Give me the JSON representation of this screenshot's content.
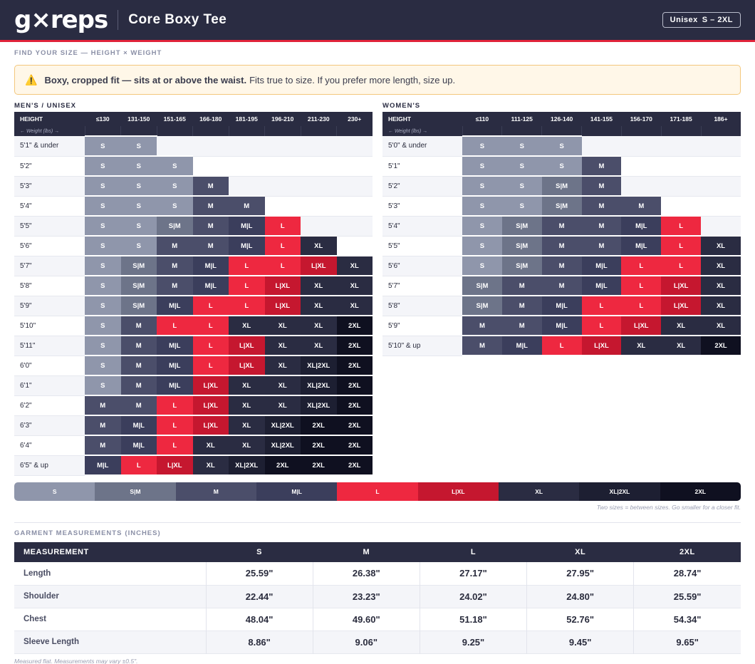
{
  "header": {
    "logo": "g×reps",
    "product_title": "Core Boxy Tee",
    "fit_label": "Unisex",
    "size_range": "S – 2XL"
  },
  "subtitle": "FIND YOUR SIZE  —  HEIGHT × WEIGHT",
  "notice": {
    "icon": "warning-icon",
    "bold_text": "Boxy, cropped fit — sits at or above the waist.",
    "text": "Fits true to size. If you prefer more length, size up."
  },
  "colors": {
    "S": "#8f96ab",
    "S|M": "#6d7489",
    "M": "#4b4e6a",
    "M|L": "#3b3e5c",
    "L": "#ee2840",
    "L|XL": "#c5172f",
    "XL": "#2a2c42",
    "XL|2XL": "#1d1f32",
    "2XL": "#0f1020"
  },
  "mens": {
    "title": "MEN'S / UNISEX",
    "height_header": "HEIGHT",
    "weight_sublabel": "← Weight (lbs) →",
    "weight_columns": [
      "≤130",
      "131-150",
      "151-165",
      "166-180",
      "181-195",
      "196-210",
      "211-230",
      "230+"
    ],
    "rows": [
      {
        "height": "5'1\" & under",
        "sizes": [
          "S",
          "S",
          "",
          "",
          "",
          "",
          "",
          ""
        ]
      },
      {
        "height": "5'2\"",
        "sizes": [
          "S",
          "S",
          "S",
          "",
          "",
          "",
          "",
          ""
        ]
      },
      {
        "height": "5'3\"",
        "sizes": [
          "S",
          "S",
          "S",
          "M",
          "",
          "",
          "",
          ""
        ]
      },
      {
        "height": "5'4\"",
        "sizes": [
          "S",
          "S",
          "S",
          "M",
          "M",
          "",
          "",
          ""
        ]
      },
      {
        "height": "5'5\"",
        "sizes": [
          "S",
          "S",
          "S|M",
          "M",
          "M|L",
          "L",
          "",
          ""
        ]
      },
      {
        "height": "5'6\"",
        "sizes": [
          "S",
          "S",
          "M",
          "M",
          "M|L",
          "L",
          "XL",
          ""
        ]
      },
      {
        "height": "5'7\"",
        "sizes": [
          "S",
          "S|M",
          "M",
          "M|L",
          "L",
          "L",
          "L|XL",
          "XL"
        ]
      },
      {
        "height": "5'8\"",
        "sizes": [
          "S",
          "S|M",
          "M",
          "M|L",
          "L",
          "L|XL",
          "XL",
          "XL"
        ]
      },
      {
        "height": "5'9\"",
        "sizes": [
          "S",
          "S|M",
          "M|L",
          "L",
          "L",
          "L|XL",
          "XL",
          "XL"
        ]
      },
      {
        "height": "5'10\"",
        "sizes": [
          "S",
          "M",
          "L",
          "L",
          "XL",
          "XL",
          "XL",
          "2XL"
        ]
      },
      {
        "height": "5'11\"",
        "sizes": [
          "S",
          "M",
          "M|L",
          "L",
          "L|XL",
          "XL",
          "XL",
          "2XL"
        ]
      },
      {
        "height": "6'0\"",
        "sizes": [
          "S",
          "M",
          "M|L",
          "L",
          "L|XL",
          "XL",
          "XL|2XL",
          "2XL"
        ]
      },
      {
        "height": "6'1\"",
        "sizes": [
          "S",
          "M",
          "M|L",
          "L|XL",
          "XL",
          "XL",
          "XL|2XL",
          "2XL"
        ]
      },
      {
        "height": "6'2\"",
        "sizes": [
          "M",
          "M",
          "L",
          "L|XL",
          "XL",
          "XL",
          "XL|2XL",
          "2XL"
        ]
      },
      {
        "height": "6'3\"",
        "sizes": [
          "M",
          "M|L",
          "L",
          "L|XL",
          "XL",
          "XL|2XL",
          "2XL",
          "2XL"
        ]
      },
      {
        "height": "6'4\"",
        "sizes": [
          "M",
          "M|L",
          "L",
          "XL",
          "XL",
          "XL|2XL",
          "2XL",
          "2XL"
        ]
      },
      {
        "height": "6'5\" & up",
        "sizes": [
          "M|L",
          "L",
          "L|XL",
          "XL",
          "XL|2XL",
          "2XL",
          "2XL",
          "2XL"
        ]
      }
    ]
  },
  "womens": {
    "title": "WOMEN'S",
    "height_header": "HEIGHT",
    "weight_sublabel": "← Weight (lbs) →",
    "weight_columns": [
      "≤110",
      "111-125",
      "126-140",
      "141-155",
      "156-170",
      "171-185",
      "186+"
    ],
    "rows": [
      {
        "height": "5'0\" & under",
        "sizes": [
          "S",
          "S",
          "S",
          "",
          "",
          "",
          ""
        ]
      },
      {
        "height": "5'1\"",
        "sizes": [
          "S",
          "S",
          "S",
          "M",
          "",
          "",
          ""
        ]
      },
      {
        "height": "5'2\"",
        "sizes": [
          "S",
          "S",
          "S|M",
          "M",
          "",
          "",
          ""
        ]
      },
      {
        "height": "5'3\"",
        "sizes": [
          "S",
          "S",
          "S|M",
          "M",
          "M",
          "",
          ""
        ]
      },
      {
        "height": "5'4\"",
        "sizes": [
          "S",
          "S|M",
          "M",
          "M",
          "M|L",
          "L",
          ""
        ]
      },
      {
        "height": "5'5\"",
        "sizes": [
          "S",
          "S|M",
          "M",
          "M",
          "M|L",
          "L",
          "XL"
        ]
      },
      {
        "height": "5'6\"",
        "sizes": [
          "S",
          "S|M",
          "M",
          "M|L",
          "L",
          "L",
          "XL"
        ]
      },
      {
        "height": "5'7\"",
        "sizes": [
          "S|M",
          "M",
          "M",
          "M|L",
          "L",
          "L|XL",
          "XL"
        ]
      },
      {
        "height": "5'8\"",
        "sizes": [
          "S|M",
          "M",
          "M|L",
          "L",
          "L",
          "L|XL",
          "XL"
        ]
      },
      {
        "height": "5'9\"",
        "sizes": [
          "M",
          "M",
          "M|L",
          "L",
          "L|XL",
          "XL",
          "XL"
        ]
      },
      {
        "height": "5'10\" & up",
        "sizes": [
          "M",
          "M|L",
          "L",
          "L|XL",
          "XL",
          "XL",
          "2XL"
        ]
      }
    ]
  },
  "legend": {
    "items": [
      "S",
      "S|M",
      "M",
      "M|L",
      "L",
      "L|XL",
      "XL",
      "XL|2XL",
      "2XL"
    ],
    "note": "Two sizes = between sizes. Go smaller for a closer fit."
  },
  "measurements": {
    "title": "GARMENT MEASUREMENTS",
    "unit": "(INCHES)",
    "header_label": "MEASUREMENT",
    "sizes": [
      "S",
      "M",
      "L",
      "XL",
      "2XL"
    ],
    "rows": [
      {
        "name": "Length",
        "values": [
          "25.59\"",
          "26.38\"",
          "27.17\"",
          "27.95\"",
          "28.74\""
        ]
      },
      {
        "name": "Shoulder",
        "values": [
          "22.44\"",
          "23.23\"",
          "24.02\"",
          "24.80\"",
          "25.59\""
        ]
      },
      {
        "name": "Chest",
        "values": [
          "48.04\"",
          "49.60\"",
          "51.18\"",
          "52.76\"",
          "54.34\""
        ]
      },
      {
        "name": "Sleeve Length",
        "values": [
          "8.86\"",
          "9.06\"",
          "9.25\"",
          "9.45\"",
          "9.65\""
        ]
      }
    ],
    "footnote": "Measured flat. Measurements may vary ±0.5\"."
  }
}
